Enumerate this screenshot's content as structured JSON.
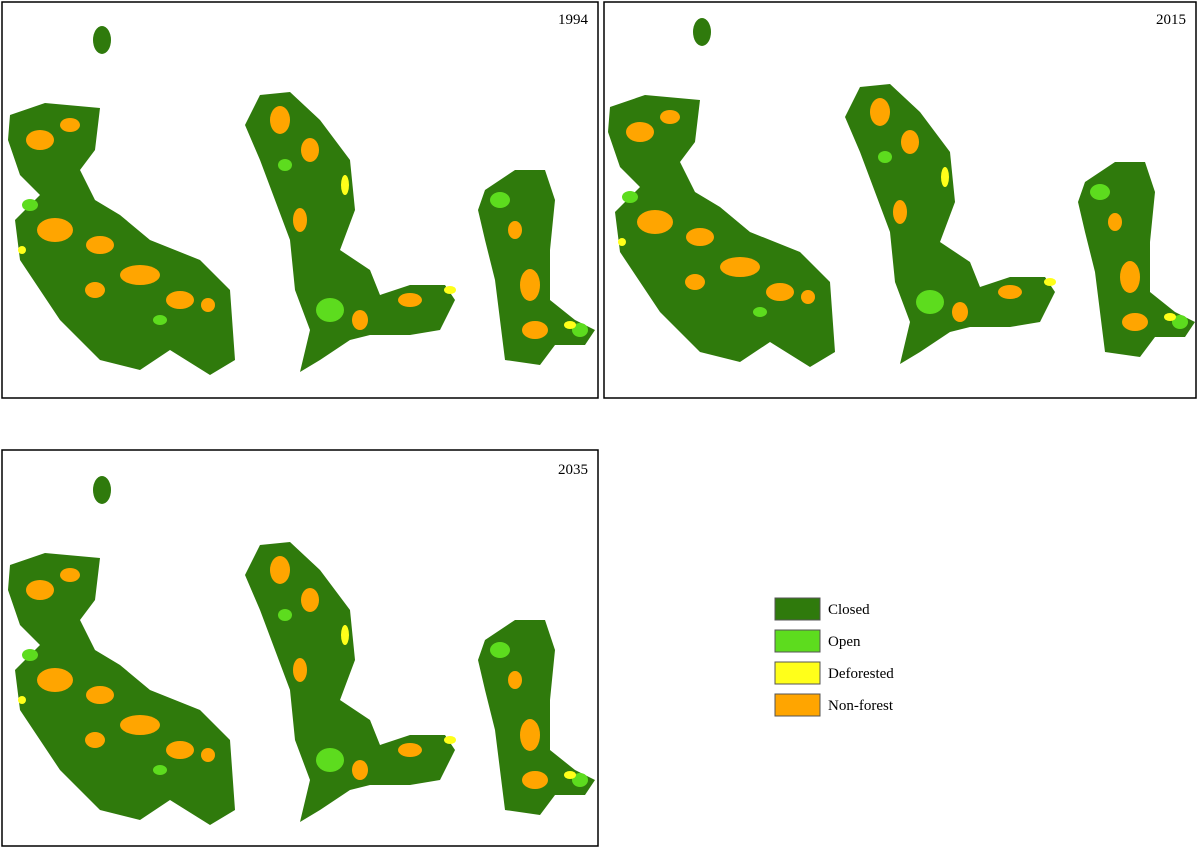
{
  "panels": [
    {
      "year": "1994"
    },
    {
      "year": "2015"
    },
    {
      "year": "2035"
    }
  ],
  "legend": [
    {
      "label": "Closed",
      "color": "#2f7a0c"
    },
    {
      "label": "Open",
      "color": "#5ddc1e"
    },
    {
      "label": "Deforested",
      "color": "#ffff1a"
    },
    {
      "label": "Non-forest",
      "color": "#ffa500"
    }
  ]
}
